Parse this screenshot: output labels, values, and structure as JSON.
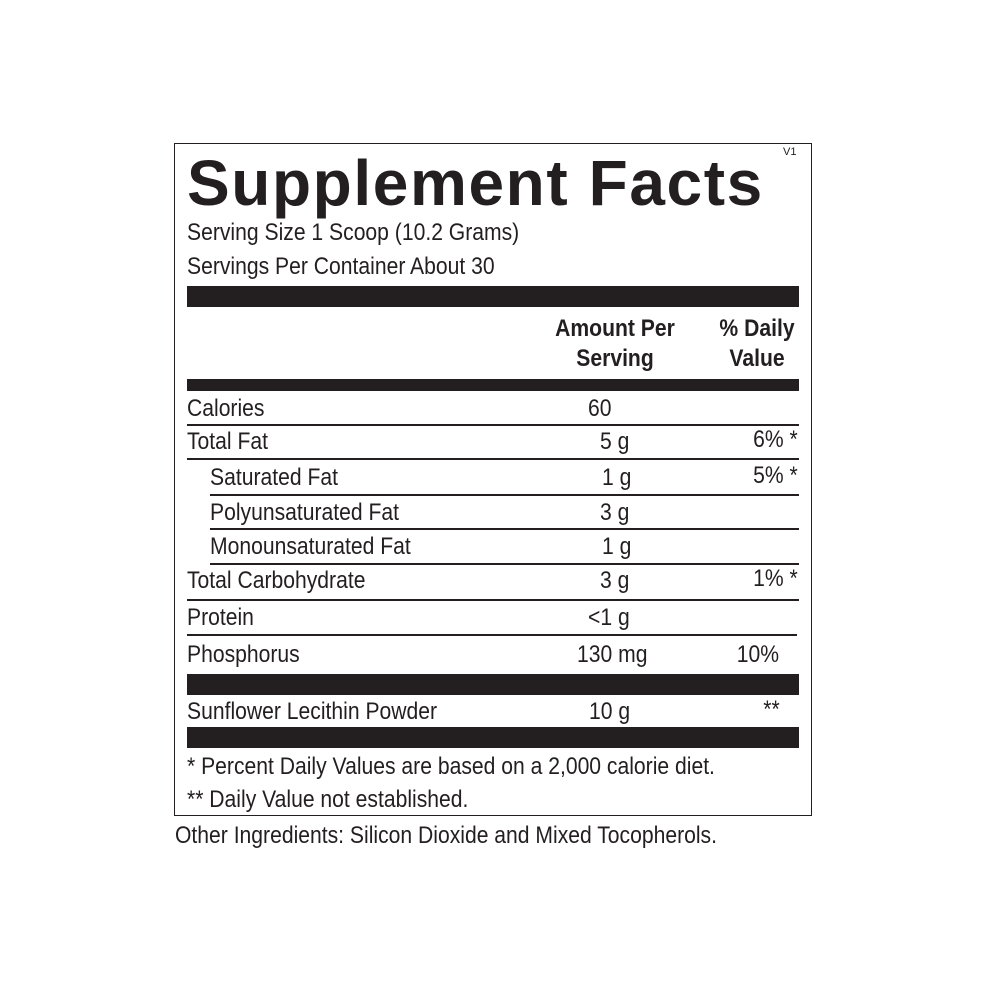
{
  "title": "Supplement Facts",
  "version": "V1",
  "serving_size": "Serving Size  1 Scoop (10.2 Grams)",
  "servings_per_container": "Servings Per Container  About 30",
  "header": {
    "amount_line1": "Amount Per",
    "amount_line2": "Serving",
    "dv_line1": "% Daily",
    "dv_line2": "Value"
  },
  "rows": [
    {
      "name": "Calories",
      "amount": "60",
      "dv": ""
    },
    {
      "name": "Total Fat",
      "amount": "5 g",
      "dv": "6% *"
    },
    {
      "name": "Saturated Fat",
      "amount": "1 g",
      "dv": "5% *"
    },
    {
      "name": "Polyunsaturated Fat",
      "amount": "3 g",
      "dv": ""
    },
    {
      "name": "Monounsaturated Fat",
      "amount": "1 g",
      "dv": ""
    },
    {
      "name": "Total Carbohydrate",
      "amount": "3 g",
      "dv": "1% *"
    },
    {
      "name": "Protein",
      "amount": "<1 g",
      "dv": ""
    },
    {
      "name": "Phosphorus",
      "amount": "130 mg",
      "dv": "10%"
    },
    {
      "name": "Sunflower Lecithin Powder",
      "amount": "10 g",
      "dv": "**"
    }
  ],
  "footnotes": {
    "percent": "* Percent Daily Values are based on a 2,000 calorie diet.",
    "not_established": "** Daily Value not established."
  },
  "other_ingredients": "Other Ingredients: Silicon Dioxide and Mixed Tocopherols."
}
